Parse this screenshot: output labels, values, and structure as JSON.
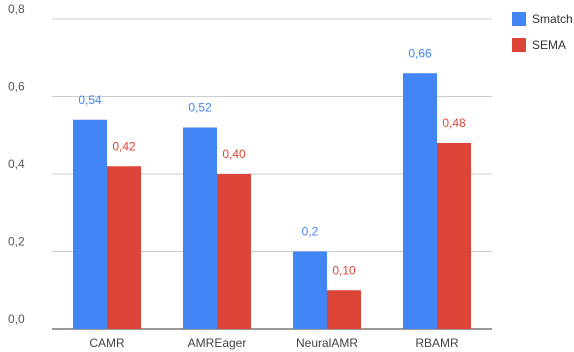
{
  "chart_data": {
    "type": "bar",
    "categories": [
      "CAMR",
      "AMREager",
      "NeuralAMR",
      "RBAMR"
    ],
    "series": [
      {
        "name": "Smatch",
        "values": [
          0.54,
          0.52,
          0.2,
          0.66
        ],
        "labels": [
          "0,54",
          "0,52",
          "0,2",
          "0,66"
        ],
        "color": "#4285f4"
      },
      {
        "name": "SEMA",
        "values": [
          0.42,
          0.4,
          0.1,
          0.48
        ],
        "labels": [
          "0,42",
          "0,40",
          "0,10",
          "0,48"
        ],
        "color": "#db4437"
      }
    ],
    "ylim": [
      0,
      0.8
    ],
    "yticks": [
      0,
      0.2,
      0.4,
      0.6,
      0.8
    ],
    "ytick_labels": [
      "0,0",
      "0,2",
      "0,4",
      "0,6",
      "0,8"
    ],
    "grid": true,
    "legend_position": "top-right"
  }
}
